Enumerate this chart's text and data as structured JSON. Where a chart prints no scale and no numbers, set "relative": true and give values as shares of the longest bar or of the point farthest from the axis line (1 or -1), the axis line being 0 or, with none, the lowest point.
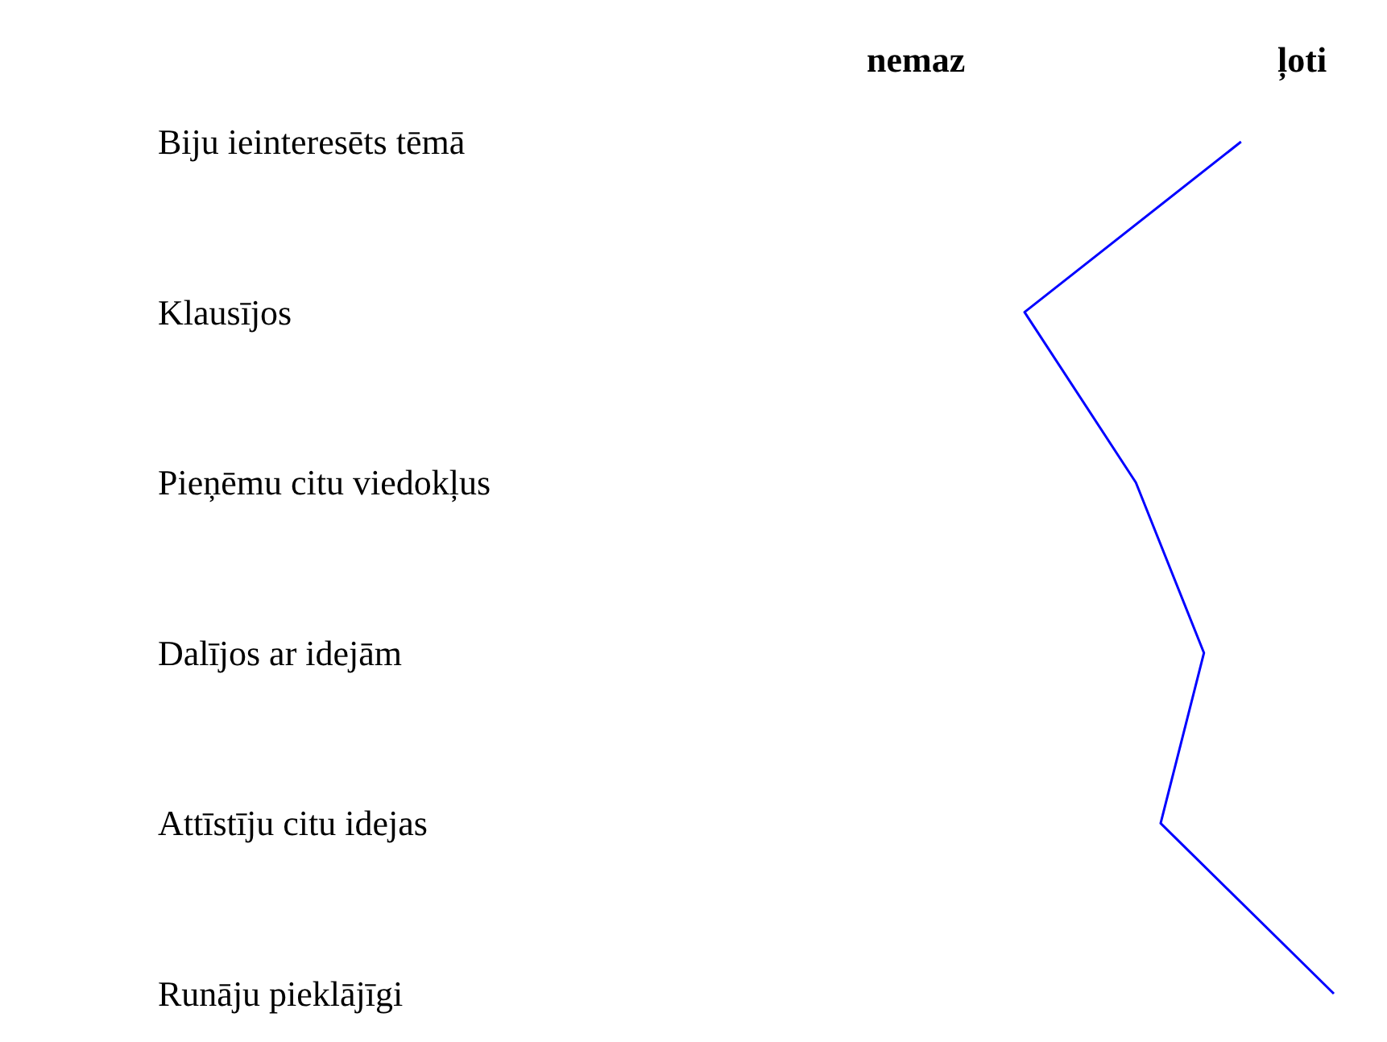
{
  "chart_data": {
    "type": "line",
    "orientation": "horizontal",
    "relative": true,
    "marker": "none",
    "categories": [
      "Biju ieinteresēts tēmā",
      "Klausījos",
      "Pieņēmu citu viedokļus",
      "Dalījos ar idejām",
      "Attīstīju citu idejas",
      "Runāju pieklājīgi"
    ],
    "values": [
      0.7,
      0,
      0.36,
      0.58,
      0.44,
      1
    ],
    "color": "#0000ff",
    "annotations": [
      "nemaz",
      "ļoti"
    ]
  }
}
